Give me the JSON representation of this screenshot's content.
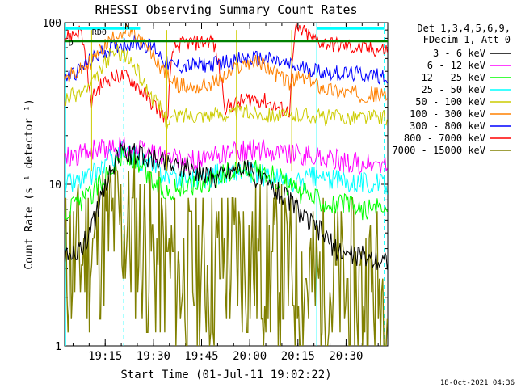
{
  "chart_data": {
    "type": "line",
    "title": "RHESSI Observing Summary Count Rates",
    "xlabel": "Start Time (01-Jul-11 19:02:22)",
    "ylabel": "Count Rate (s⁻¹ detector⁻¹)",
    "yscale": "log",
    "ylim": [
      1,
      100
    ],
    "xlim_minutes_after_start": [
      0,
      100.6
    ],
    "x_unit": "minutes after 19:02:22 UT",
    "x_ticks": [
      {
        "label": "19:15",
        "minute": 12.63
      },
      {
        "label": "19:30",
        "minute": 27.63
      },
      {
        "label": "19:45",
        "minute": 42.63
      },
      {
        "label": "20:00",
        "minute": 57.63
      },
      {
        "label": "20:15",
        "minute": 72.63
      },
      {
        "label": "20:30",
        "minute": 87.63
      }
    ],
    "y_ticks": [
      {
        "label": "1",
        "value": 1
      },
      {
        "label": "10",
        "value": 10
      },
      {
        "label": "100",
        "value": 100
      }
    ],
    "legend_header": [
      "Det 1,3,4,5,6,9,",
      "FDecim 1, Att 0"
    ],
    "legend_placement": "outside-right",
    "timestamp": "18-Oct-2021 04:36",
    "flag_labels": [
      "RD0",
      "N",
      "D"
    ],
    "night_intervals": [
      [
        0,
        8.4
      ],
      [
        31.8,
        53.5
      ],
      [
        70.7,
        100.6
      ]
    ],
    "vertical_markers": [
      {
        "minute": 0.3,
        "color": "#00ffff",
        "style": "solid"
      },
      {
        "minute": 18.4,
        "color": "#00ffff",
        "style": "dashed"
      },
      {
        "minute": 78.5,
        "color": "#00ffff",
        "style": "solid"
      },
      {
        "minute": 99.5,
        "color": "#00ffff",
        "style": "dashed"
      }
    ],
    "series": [
      {
        "name": "3 - 6 keV",
        "color": "#000000",
        "x": [
          0,
          2,
          5,
          8,
          10,
          12,
          15,
          18,
          20,
          24,
          28,
          32,
          36,
          40,
          44,
          46,
          50,
          55,
          60,
          65,
          70,
          75,
          80,
          84,
          88,
          92,
          96,
          100
        ],
        "y": [
          3.5,
          3.6,
          4,
          5,
          6.5,
          9,
          13,
          16,
          15.5,
          15,
          14.5,
          13.5,
          13,
          12.5,
          11.5,
          11,
          12,
          13,
          11,
          9.5,
          8,
          6,
          5,
          4,
          3.7,
          3.6,
          3.5,
          3.4
        ]
      },
      {
        "name": "6 - 12 keV",
        "color": "#ff00ff",
        "x": [
          0,
          5,
          8,
          12,
          15,
          18,
          20,
          24,
          28,
          32,
          36,
          40,
          44,
          50,
          55,
          60,
          65,
          70,
          75,
          80,
          85,
          90,
          95,
          100
        ],
        "y": [
          15,
          15.5,
          16,
          16.5,
          16.5,
          17,
          16.5,
          16,
          15.5,
          14.5,
          14,
          14,
          14,
          15.5,
          16,
          16.5,
          16,
          15.5,
          15,
          14.5,
          14,
          13.5,
          13,
          13
        ]
      },
      {
        "name": "12 - 25 keV",
        "color": "#00ff00",
        "x": [
          0,
          3,
          6,
          9,
          12,
          15,
          18,
          21,
          24,
          28,
          32,
          36,
          40,
          44,
          48,
          52,
          56,
          60,
          64,
          68,
          72,
          76,
          80,
          84,
          88,
          92,
          96,
          100
        ],
        "y": [
          7,
          7.5,
          8,
          9,
          11,
          13,
          15,
          14,
          12,
          10,
          9,
          9.5,
          10,
          10.5,
          11,
          12,
          12.5,
          12,
          11.5,
          10.5,
          9,
          8.5,
          8,
          7.5,
          7.5,
          7,
          7,
          7
        ]
      },
      {
        "name": "25 - 50 keV",
        "color": "#00ffff",
        "x": [
          0,
          4,
          8,
          12,
          15,
          18,
          21,
          24,
          28,
          32,
          36,
          40,
          44,
          48,
          52,
          56,
          60,
          64,
          68,
          72,
          76,
          80,
          84,
          88,
          92,
          96,
          100
        ],
        "y": [
          10,
          10.5,
          11,
          13,
          15,
          16,
          15,
          14,
          12.5,
          11.5,
          11,
          11,
          11,
          11.5,
          12,
          12,
          11.5,
          11,
          10.5,
          10,
          11,
          11,
          10.5,
          10.5,
          10.5,
          10,
          10
        ]
      },
      {
        "name": "50 - 100 keV",
        "color": "#cccc00",
        "x": [
          0,
          2,
          4,
          6,
          8,
          10,
          12,
          14,
          16,
          18,
          20,
          22,
          24,
          26,
          28,
          30,
          32,
          34,
          38,
          42,
          46,
          50,
          53,
          56,
          60,
          64,
          68,
          70,
          72,
          76,
          80,
          84,
          88,
          92,
          96,
          100
        ],
        "y": [
          34,
          35,
          36,
          38,
          40,
          45,
          54,
          62,
          66,
          65,
          60,
          52,
          45,
          37,
          33,
          29,
          24,
          26,
          27,
          27,
          27,
          27,
          27.5,
          28,
          27.5,
          27,
          26.5,
          26,
          27,
          27,
          26,
          26,
          26,
          26,
          26,
          26
        ]
      },
      {
        "name": "100 - 300 keV",
        "color": "#ff8000",
        "x": [
          0,
          3,
          6,
          9,
          12,
          15,
          17,
          19,
          22,
          25,
          28,
          31,
          34,
          38,
          42,
          46,
          50,
          54,
          58,
          62,
          66,
          70,
          73,
          76,
          80,
          84,
          88,
          92,
          96,
          100
        ],
        "y": [
          45,
          48,
          52,
          60,
          70,
          80,
          88,
          88,
          82,
          72,
          60,
          50,
          42,
          40,
          40,
          42,
          46,
          53,
          58,
          55,
          48,
          42,
          46,
          44,
          40,
          38,
          37,
          36,
          36,
          35
        ]
      },
      {
        "name": "300 - 800 keV",
        "color": "#0000ff",
        "x": [
          0,
          4,
          8,
          12,
          16,
          20,
          24,
          28,
          32,
          36,
          40,
          44,
          48,
          52,
          56,
          60,
          64,
          68,
          72,
          76,
          80,
          84,
          88,
          92,
          96,
          100
        ],
        "y": [
          46,
          50,
          58,
          66,
          72,
          75,
          74,
          70,
          55,
          54,
          54,
          55,
          56,
          58,
          60,
          60,
          59,
          56,
          53,
          52,
          50,
          49,
          48,
          48,
          47,
          47
        ]
      },
      {
        "name": "800 - 7000 keV",
        "color": "#ff0000",
        "x": [
          0,
          3,
          5,
          8,
          10,
          12,
          15,
          18,
          21,
          24,
          27,
          30,
          32,
          34,
          38,
          42,
          46,
          50,
          54,
          58,
          62,
          66,
          70,
          72,
          74,
          78,
          82,
          86,
          90,
          94,
          98,
          100
        ],
        "y": [
          80,
          85,
          90,
          32,
          38,
          42,
          46,
          47,
          44,
          38,
          32,
          28,
          25,
          70,
          75,
          75,
          78,
          30,
          32,
          34,
          33,
          30,
          28,
          90,
          88,
          78,
          74,
          72,
          70,
          69,
          68,
          68
        ]
      },
      {
        "name": "7000 - 15000 keV",
        "color": "#808000",
        "x": [
          0,
          4,
          8,
          10,
          12,
          14,
          16,
          18,
          20,
          22,
          24,
          26,
          28,
          30,
          34,
          38,
          42,
          46,
          50,
          54,
          58,
          62,
          66,
          70,
          74,
          78,
          82,
          86,
          90,
          94,
          98,
          100
        ],
        "y": [
          3.2,
          3.5,
          3.8,
          4.2,
          4.8,
          5.5,
          6,
          5.8,
          5,
          4.5,
          4.2,
          3.8,
          3.5,
          3.3,
          3,
          2.6,
          2.7,
          3,
          3.4,
          3.6,
          3.4,
          3.2,
          3,
          2.8,
          2.6,
          2.4,
          2.4,
          2.3,
          2.2,
          2.2,
          2.1,
          2.1
        ]
      }
    ],
    "flag_bars": [
      {
        "color": "#00ffff",
        "segments": [
          [
            0,
            23.5
          ],
          [
            78.5,
            99.5
          ]
        ]
      },
      {
        "color": "#008000",
        "segments": [
          [
            0,
            100.6
          ]
        ]
      }
    ]
  }
}
